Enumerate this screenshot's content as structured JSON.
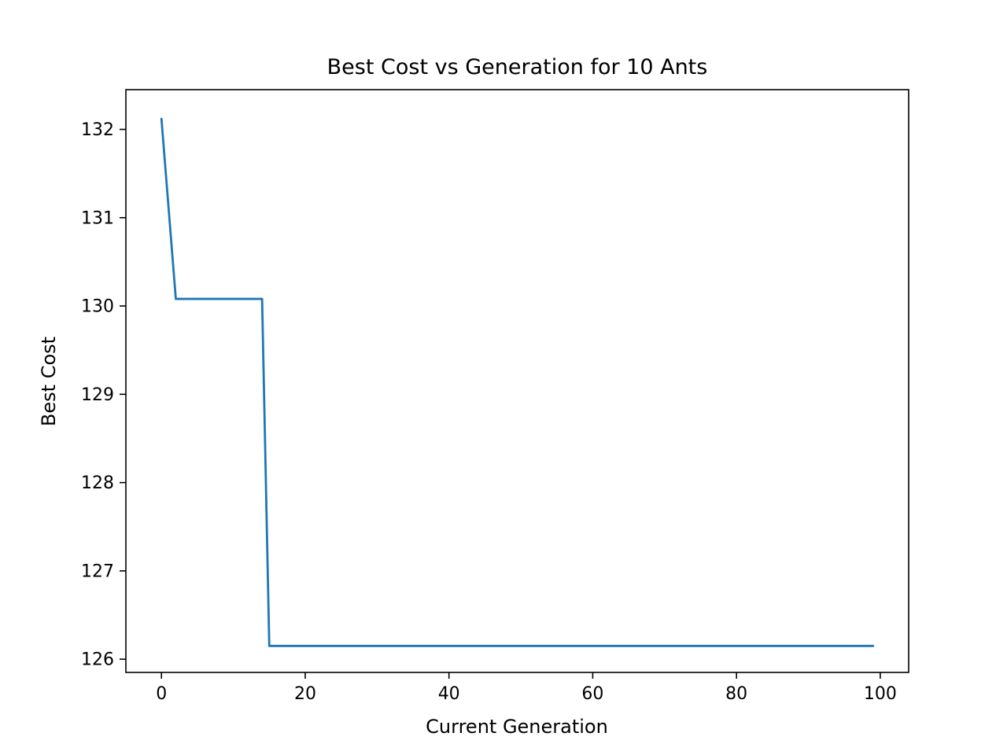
{
  "chart_data": {
    "type": "line",
    "title": "Best Cost vs Generation for 10 Ants",
    "xlabel": "Current Generation",
    "ylabel": "Best Cost",
    "xlim": [
      -4.95,
      103.95
    ],
    "ylim": [
      125.85,
      132.45
    ],
    "xticks": [
      0,
      20,
      40,
      60,
      80,
      100
    ],
    "yticks": [
      126,
      127,
      128,
      129,
      130,
      131,
      132
    ],
    "grid": false,
    "legend_position": "none",
    "background_color": "#ffffff",
    "spine_color": "#000000",
    "series": [
      {
        "name": "best-cost",
        "color": "#1f77b4",
        "line_width": 2.8,
        "points": [
          [
            0,
            132.12
          ],
          [
            2,
            130.08
          ],
          [
            14,
            130.08
          ],
          [
            15,
            126.15
          ],
          [
            99,
            126.15
          ]
        ]
      }
    ]
  }
}
